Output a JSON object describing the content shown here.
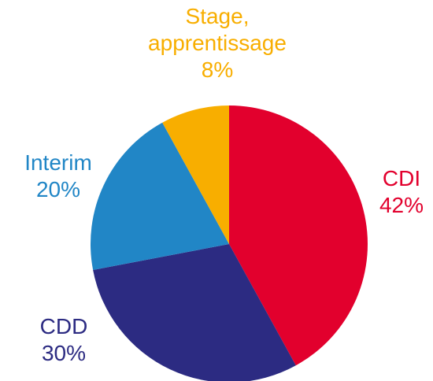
{
  "chart_data": {
    "type": "pie",
    "slices": [
      {
        "name": "CDI",
        "value": 42,
        "value_label": "42%",
        "color": "#E2002D"
      },
      {
        "name": "CDD",
        "value": 30,
        "value_label": "30%",
        "color": "#2C2B82"
      },
      {
        "name": "Interim",
        "value": 20,
        "value_label": "20%",
        "color": "#2186C6"
      },
      {
        "name_lines": [
          "Stage,",
          "apprentissage"
        ],
        "value": 8,
        "value_label": "8%",
        "color": "#F8AE00"
      }
    ],
    "start_position": "top",
    "direction": "clockwise"
  }
}
